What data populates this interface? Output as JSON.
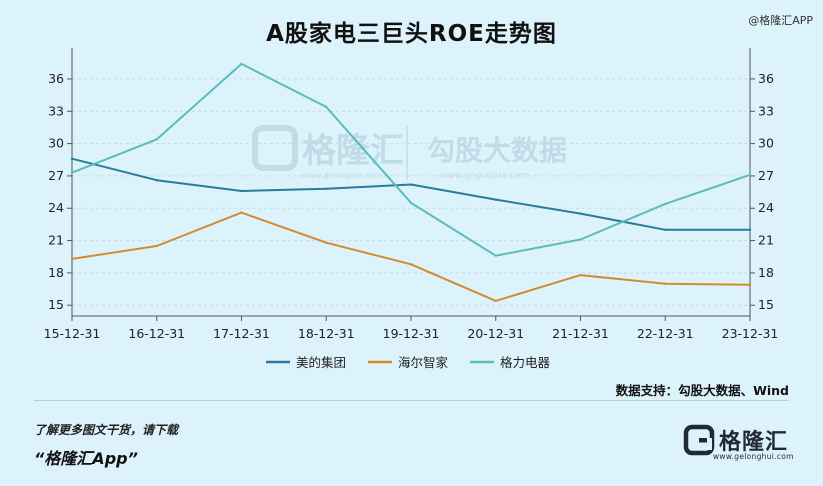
{
  "header": {
    "title": "A股家电三巨头ROE走势图"
  },
  "watermark": {
    "top_right": "@格隆汇APP",
    "center_brand": "格隆汇",
    "center_site": "www.gelonghui.com",
    "center_product": "勾股大数据",
    "center_product_site": "www.gogudata.com"
  },
  "source_note": "数据支持：勾股大数据、Wind",
  "footer": {
    "promo": "了解更多图文干货，请下载",
    "app_name": "“格隆汇App”",
    "brand_name": "格隆汇",
    "brand_url": "www.gelonghui.com"
  },
  "colors": {
    "background": "#dcf3fb",
    "midea": "#2b7b9f",
    "haier": "#d48a2f",
    "gree": "#5bbcbc",
    "grid": "#c3dce4"
  },
  "chart_data": {
    "type": "line",
    "title": "A股家电三巨头ROE走势图",
    "x": [
      "15-12-31",
      "16-12-31",
      "17-12-31",
      "18-12-31",
      "19-12-31",
      "20-12-31",
      "21-12-31",
      "22-12-31",
      "23-12-31"
    ],
    "ylim": [
      14,
      38.5
    ],
    "yticks": [
      15,
      18,
      21,
      24,
      27,
      30,
      33,
      36
    ],
    "y_axes": "left-and-right",
    "grid": "horizontal-dashed",
    "legend_position": "bottom-center",
    "series": [
      {
        "name": "美的集团",
        "color": "#2b7b9f",
        "values": [
          28.6,
          26.6,
          25.6,
          25.8,
          26.2,
          24.8,
          23.5,
          22.0,
          22.0
        ]
      },
      {
        "name": "海尔智家",
        "color": "#d48a2f",
        "values": [
          19.3,
          20.5,
          23.6,
          20.8,
          18.8,
          15.4,
          17.8,
          17.0,
          16.9
        ]
      },
      {
        "name": "格力电器",
        "color": "#5bbcbc",
        "values": [
          27.3,
          30.4,
          37.4,
          33.4,
          24.5,
          19.6,
          21.1,
          24.4,
          27.1
        ]
      }
    ]
  }
}
